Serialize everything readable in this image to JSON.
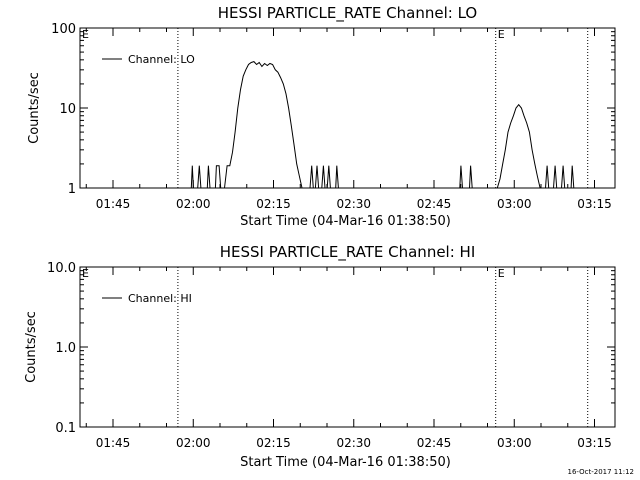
{
  "footer": {
    "timestamp": "16-Oct-2017 11:12"
  },
  "chart_data": [
    {
      "type": "line",
      "title": "HESSI PARTICLE_RATE Channel: LO",
      "xlabel": "Start Time (04-Mar-16 01:38:50)",
      "ylabel": "Counts/sec",
      "yscale": "log",
      "ylim": [
        1,
        100
      ],
      "xlim_minutes": [
        0,
        100
      ],
      "yticks": [
        {
          "value": 1,
          "label": "1"
        },
        {
          "value": 10,
          "label": "10"
        },
        {
          "value": 100,
          "label": "100"
        }
      ],
      "xticks": [
        {
          "minute": 6.17,
          "label": "01:45"
        },
        {
          "minute": 21.17,
          "label": "02:00"
        },
        {
          "minute": 36.17,
          "label": "02:15"
        },
        {
          "minute": 51.17,
          "label": "02:30"
        },
        {
          "minute": 66.17,
          "label": "02:45"
        },
        {
          "minute": 81.17,
          "label": "03:00"
        },
        {
          "minute": 96.17,
          "label": "03:15"
        }
      ],
      "markers": [
        {
          "minute": 18.3,
          "label": ""
        },
        {
          "minute": 77.7,
          "label": "E"
        },
        {
          "minute": 94.9,
          "label": ""
        }
      ],
      "corner_label": "E",
      "legend": {
        "label": "Channel: LO",
        "position": "top-left"
      },
      "series": [
        {
          "name": "Channel: LO",
          "x": [
            20.8,
            21.0,
            21.2,
            22.0,
            22.3,
            22.6,
            23.8,
            24.0,
            24.3,
            25.3,
            25.5,
            26.0,
            26.3,
            27.0,
            27.5,
            28.0,
            28.5,
            29.0,
            29.5,
            30.0,
            30.5,
            31.0,
            31.5,
            32.0,
            32.5,
            33.0,
            33.5,
            34.0,
            34.5,
            35.0,
            35.5,
            36.0,
            36.5,
            37.0,
            37.5,
            38.0,
            38.5,
            39.0,
            39.5,
            40.0,
            40.5,
            41.0,
            41.5,
            42.0,
            43.0,
            43.3,
            43.6,
            44.0,
            44.3,
            44.6,
            45.2,
            45.5,
            45.8,
            46.2,
            46.5,
            46.8,
            47.8,
            48.0,
            48.3,
            71.0,
            71.2,
            71.5,
            72.8,
            73.0,
            73.3,
            74.0,
            74.5,
            75.0,
            75.5,
            76.0,
            76.5,
            77.0,
            77.5,
            78.0,
            78.5,
            79.0,
            79.5,
            80.0,
            80.5,
            81.0,
            81.5,
            82.0,
            82.5,
            83.0,
            83.5,
            84.0,
            84.5,
            85.0,
            85.5,
            86.0,
            86.5,
            87.0,
            87.3,
            87.6,
            88.5,
            88.8,
            89.1,
            90.0,
            90.3,
            90.6,
            91.8,
            92.0,
            92.3
          ],
          "values": [
            1,
            1.9,
            1,
            1,
            1.9,
            1,
            1,
            1.9,
            1,
            1,
            1.9,
            1.9,
            1,
            1,
            1.9,
            1.9,
            2.8,
            5,
            10,
            17,
            25,
            30,
            35,
            37,
            38,
            35,
            37,
            33,
            36,
            34,
            36,
            35,
            30,
            28,
            24,
            20,
            15,
            10,
            6,
            3.5,
            2,
            1.4,
            1,
            1,
            1,
            1.9,
            1,
            1,
            1.9,
            1,
            1,
            1.9,
            1,
            1,
            1.9,
            1,
            1,
            1.9,
            1,
            1,
            1.9,
            1,
            1,
            1.9,
            1,
            1,
            1,
            1,
            1,
            1,
            1,
            1,
            1,
            1,
            1.3,
            2,
            3,
            5,
            6.5,
            8,
            10,
            11,
            10,
            8,
            6.5,
            5,
            3,
            2,
            1.4,
            1,
            1,
            1,
            1.9,
            1,
            1,
            1.9,
            1,
            1,
            1.9,
            1,
            1,
            1.9,
            1
          ]
        }
      ]
    },
    {
      "type": "line",
      "title": "HESSI PARTICLE_RATE Channel: HI",
      "xlabel": "Start Time (04-Mar-16 01:38:50)",
      "ylabel": "Counts/sec",
      "yscale": "log",
      "ylim": [
        0.1,
        10
      ],
      "xlim_minutes": [
        0,
        100
      ],
      "yticks": [
        {
          "value": 0.1,
          "label": "0.1"
        },
        {
          "value": 1,
          "label": "1.0"
        },
        {
          "value": 10,
          "label": "10.0"
        }
      ],
      "xticks": [
        {
          "minute": 6.17,
          "label": "01:45"
        },
        {
          "minute": 21.17,
          "label": "02:00"
        },
        {
          "minute": 36.17,
          "label": "02:15"
        },
        {
          "minute": 51.17,
          "label": "02:30"
        },
        {
          "minute": 66.17,
          "label": "02:45"
        },
        {
          "minute": 81.17,
          "label": "03:00"
        },
        {
          "minute": 96.17,
          "label": "03:15"
        }
      ],
      "markers": [
        {
          "minute": 18.3,
          "label": ""
        },
        {
          "minute": 77.7,
          "label": "E"
        },
        {
          "minute": 94.9,
          "label": ""
        }
      ],
      "corner_label": "E",
      "legend": {
        "label": "Channel: HI",
        "position": "top-left"
      },
      "series": [
        {
          "name": "Channel: HI",
          "x": [],
          "values": []
        }
      ]
    }
  ]
}
